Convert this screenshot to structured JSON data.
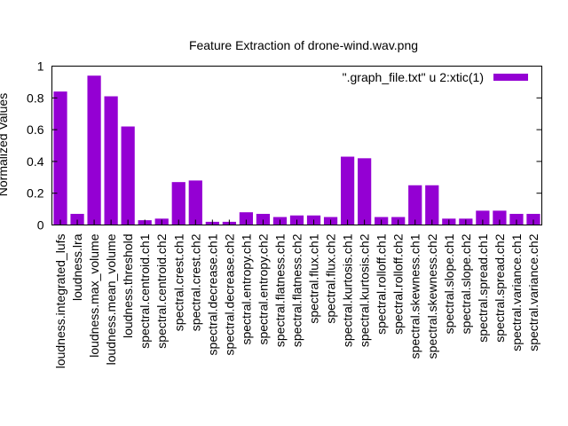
{
  "chart_data": {
    "type": "bar",
    "title": "Feature Extraction of drone-wind.wav.png",
    "xlabel": "",
    "ylabel": "Normalized Values",
    "ylim": [
      0,
      1
    ],
    "yticks": [
      "0",
      "0.2",
      "0.4",
      "0.6",
      "0.8",
      "1"
    ],
    "grid": false,
    "legend_position": "top-right",
    "categories": [
      "loudness.integrated_lufs",
      "loudness.lra",
      "loudness.max_volume",
      "loudness.mean_volume",
      "loudness.threshold",
      "spectral.centroid.ch1",
      "spectral.centroid.ch2",
      "spectral.crest.ch1",
      "spectral.crest.ch2",
      "spectral.decrease.ch1",
      "spectral.decrease.ch2",
      "spectral.entropy.ch1",
      "spectral.entropy.ch2",
      "spectral.flatness.ch1",
      "spectral.flatness.ch2",
      "spectral.flux.ch1",
      "spectral.flux.ch2",
      "spectral.kurtosis.ch1",
      "spectral.kurtosis.ch2",
      "spectral.rolloff.ch1",
      "spectral.rolloff.ch2",
      "spectral.skewness.ch1",
      "spectral.skewness.ch2",
      "spectral.slope.ch1",
      "spectral.slope.ch2",
      "spectral.spread.ch1",
      "spectral.spread.ch2",
      "spectral.variance.ch1",
      "spectral.variance.ch2"
    ],
    "series": [
      {
        "name": "\".graph_file.txt\" u 2:xtic(1)",
        "color": "#9400d3",
        "values": [
          0.84,
          0.07,
          0.94,
          0.81,
          0.62,
          0.03,
          0.04,
          0.27,
          0.28,
          0.02,
          0.02,
          0.08,
          0.07,
          0.05,
          0.06,
          0.06,
          0.05,
          0.43,
          0.42,
          0.05,
          0.05,
          0.25,
          0.25,
          0.04,
          0.04,
          0.09,
          0.09,
          0.07,
          0.07
        ]
      }
    ]
  }
}
